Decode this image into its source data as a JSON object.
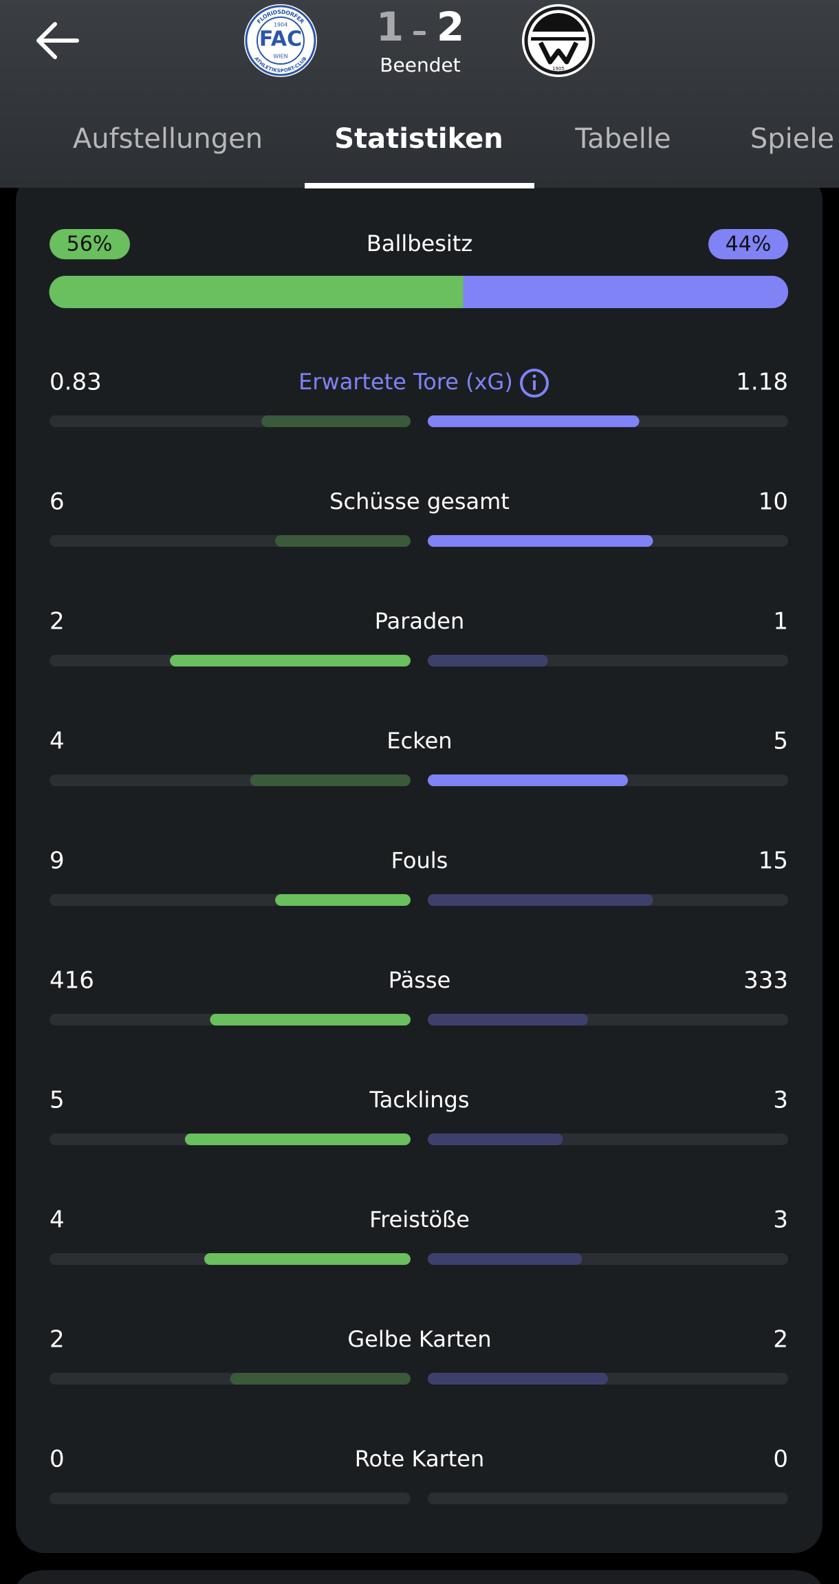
{
  "header": {
    "home_logo": {
      "name": "FAC",
      "city": "WIEN",
      "year": "1904",
      "ring_top": "FLORIDSDORFER",
      "ring_bottom": "ATHLETIKSPORT-CLUB"
    },
    "away_logo": {
      "year": "1905"
    },
    "score": {
      "home": 1,
      "away": 2
    },
    "status": "Beendet"
  },
  "tabs": {
    "items": [
      "Aufstellungen",
      "Statistiken",
      "Tabelle",
      "Spiele"
    ],
    "active": 1
  },
  "possession": {
    "label": "Ballbesitz",
    "home": 56,
    "away": 44,
    "home_label": "56%",
    "away_label": "44%"
  },
  "stats": [
    {
      "label": "Erwartete Tore (xG)",
      "home": 0.83,
      "away": 1.18,
      "highlight": "away",
      "info": true
    },
    {
      "label": "Schüsse gesamt",
      "home": 6,
      "away": 10,
      "highlight": "away"
    },
    {
      "label": "Paraden",
      "home": 2,
      "away": 1,
      "highlight": "home"
    },
    {
      "label": "Ecken",
      "home": 4,
      "away": 5,
      "highlight": "away"
    },
    {
      "label": "Fouls",
      "home": 9,
      "away": 15,
      "highlight": "home"
    },
    {
      "label": "Pässe",
      "home": 416,
      "away": 333,
      "highlight": "home"
    },
    {
      "label": "Tacklings",
      "home": 5,
      "away": 3,
      "highlight": "home"
    },
    {
      "label": "Freistöße",
      "home": 4,
      "away": 3,
      "highlight": "home"
    },
    {
      "label": "Gelbe Karten",
      "home": 2,
      "away": 2,
      "highlight": "none"
    },
    {
      "label": "Rote Karten",
      "home": 0,
      "away": 0,
      "highlight": "none"
    }
  ]
}
